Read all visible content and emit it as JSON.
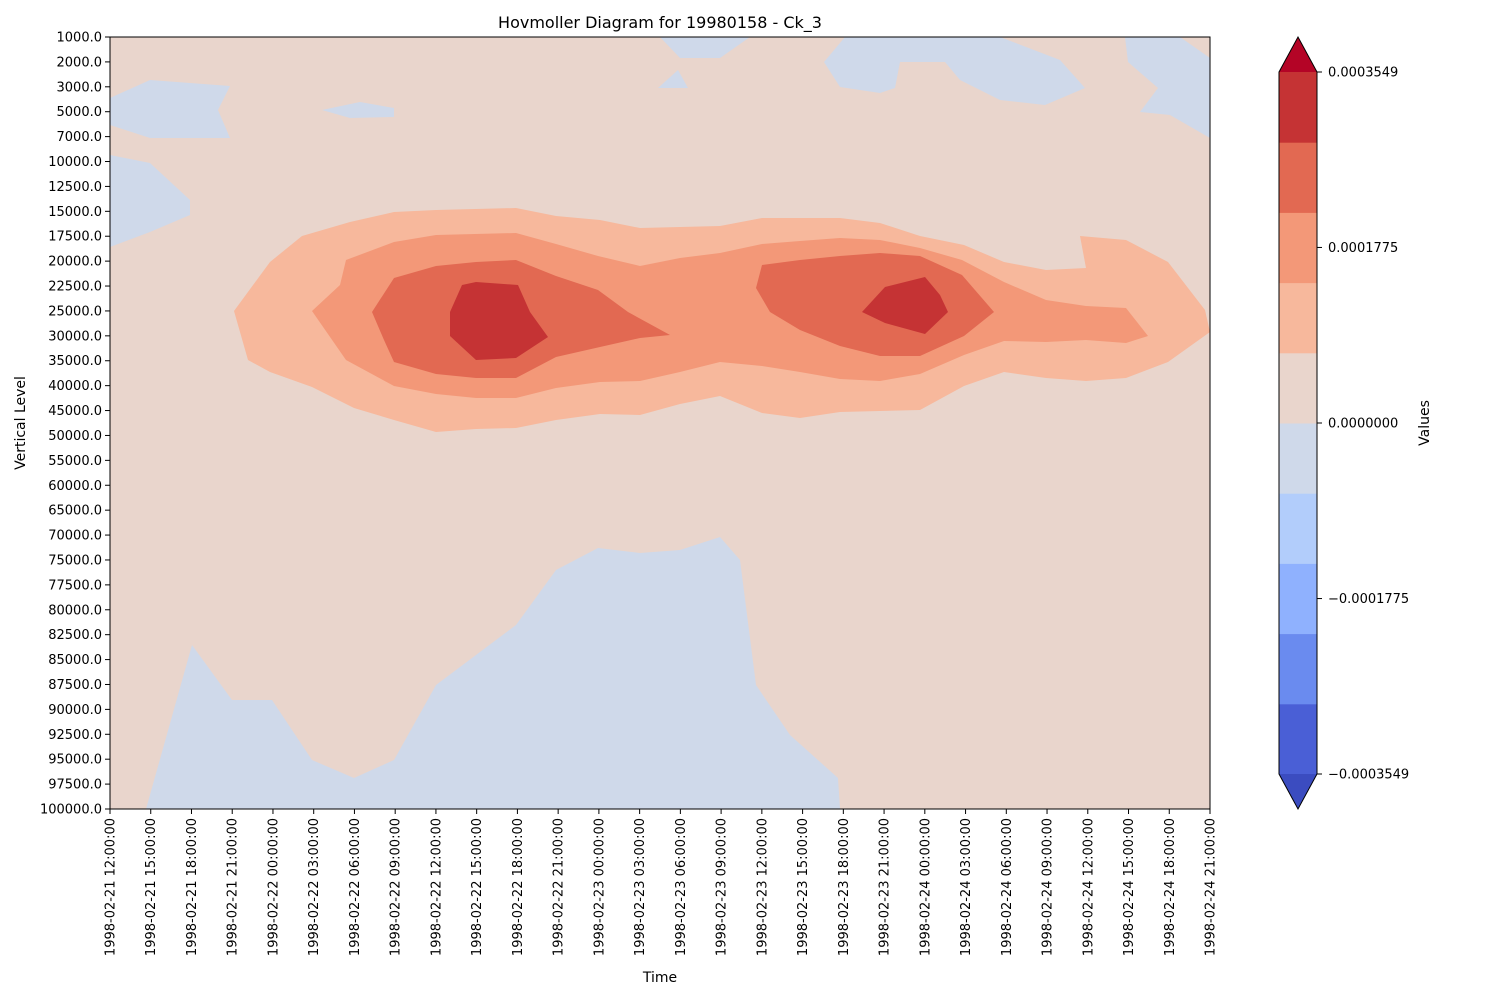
{
  "chart_data": {
    "type": "heatmap",
    "subtype": "filled-contour",
    "title": "Hovmoller Diagram for 19980158 - Ck_3",
    "xlabel": "Time",
    "ylabel": "Vertical Level",
    "colorbar_label": "Values",
    "colormap": "coolwarm",
    "x_ticks": [
      "1998-02-21 12:00:00",
      "1998-02-21 15:00:00",
      "1998-02-21 18:00:00",
      "1998-02-21 21:00:00",
      "1998-02-22 00:00:00",
      "1998-02-22 03:00:00",
      "1998-02-22 06:00:00",
      "1998-02-22 09:00:00",
      "1998-02-22 12:00:00",
      "1998-02-22 15:00:00",
      "1998-02-22 18:00:00",
      "1998-02-22 21:00:00",
      "1998-02-23 00:00:00",
      "1998-02-23 03:00:00",
      "1998-02-23 06:00:00",
      "1998-02-23 09:00:00",
      "1998-02-23 12:00:00",
      "1998-02-23 15:00:00",
      "1998-02-23 18:00:00",
      "1998-02-23 21:00:00",
      "1998-02-24 00:00:00",
      "1998-02-24 03:00:00",
      "1998-02-24 06:00:00",
      "1998-02-24 09:00:00",
      "1998-02-24 12:00:00",
      "1998-02-24 15:00:00",
      "1998-02-24 18:00:00",
      "1998-02-24 21:00:00"
    ],
    "y_ticks": [
      "1000.0",
      "2000.0",
      "3000.0",
      "5000.0",
      "7000.0",
      "10000.0",
      "12500.0",
      "15000.0",
      "17500.0",
      "20000.0",
      "22500.0",
      "25000.0",
      "30000.0",
      "35000.0",
      "40000.0",
      "45000.0",
      "50000.0",
      "55000.0",
      "60000.0",
      "65000.0",
      "70000.0",
      "75000.0",
      "77500.0",
      "80000.0",
      "82500.0",
      "85000.0",
      "87500.0",
      "90000.0",
      "92500.0",
      "95000.0",
      "97500.0",
      "100000.0"
    ],
    "colorbar_ticks": [
      "0.0003549",
      "0.0001775",
      "0.0000000",
      "−0.0001775",
      "−0.0003549"
    ],
    "levels": [
      -0.00049686,
      -0.00042588,
      -0.0003549,
      -0.00028392,
      -0.00021294,
      -0.00014196,
      -7.098e-05,
      0.0,
      7.098e-05,
      0.00014196,
      0.00021294,
      0.00028392,
      0.0003549,
      0.00042588,
      0.00049686
    ],
    "level_colors": [
      "#4a5fd6",
      "#6a8bef",
      "#8fb1fe",
      "#b2cdfb",
      "#cfd9ea",
      "#e9d5cc",
      "#f7b89c",
      "#f39878",
      "#e26952",
      "#c53334"
    ],
    "extend_colors": {
      "max": "#b40426",
      "min": "#3b4cc0"
    },
    "regions": [
      {
        "level_band": "weak negative",
        "color": "#cfd9ea",
        "where": "lower troposphere 75000-100000 from 1998-02-21 15:00 to 1998-02-23 18:00; small upper patches near 1000-7000 and 10000-17500 on 1998-02-21, and near 1000-3000 on 1998-02-23/24"
      },
      {
        "level_band": "0 to 0.00007",
        "color": "#e9d5cc",
        "where": "background"
      },
      {
        "level_band": "0.00007 to 0.00014",
        "color": "#f7b89c",
        "where": "band 15000-50000 from 1998-02-22 00:00 to 1998-02-24 21:00"
      },
      {
        "level_band": "0.00014 to 0.00021",
        "color": "#f39878",
        "where": "band 17500-45000 from 1998-02-22 03:00 to 1998-02-24 15:00"
      },
      {
        "level_band": "0.00021 to 0.00028",
        "color": "#e26952",
        "where": "core 20000-40000 around 1998-02-22 18:00 and around 1998-02-23 21:00"
      },
      {
        "level_band": "0.00028 to 0.00035",
        "color": "#c53334",
        "where": "maxima at 22500-35000 on 1998-02-22 15:00-21:00 and at 22500-30000 near 1998-02-24 00:00"
      }
    ]
  }
}
